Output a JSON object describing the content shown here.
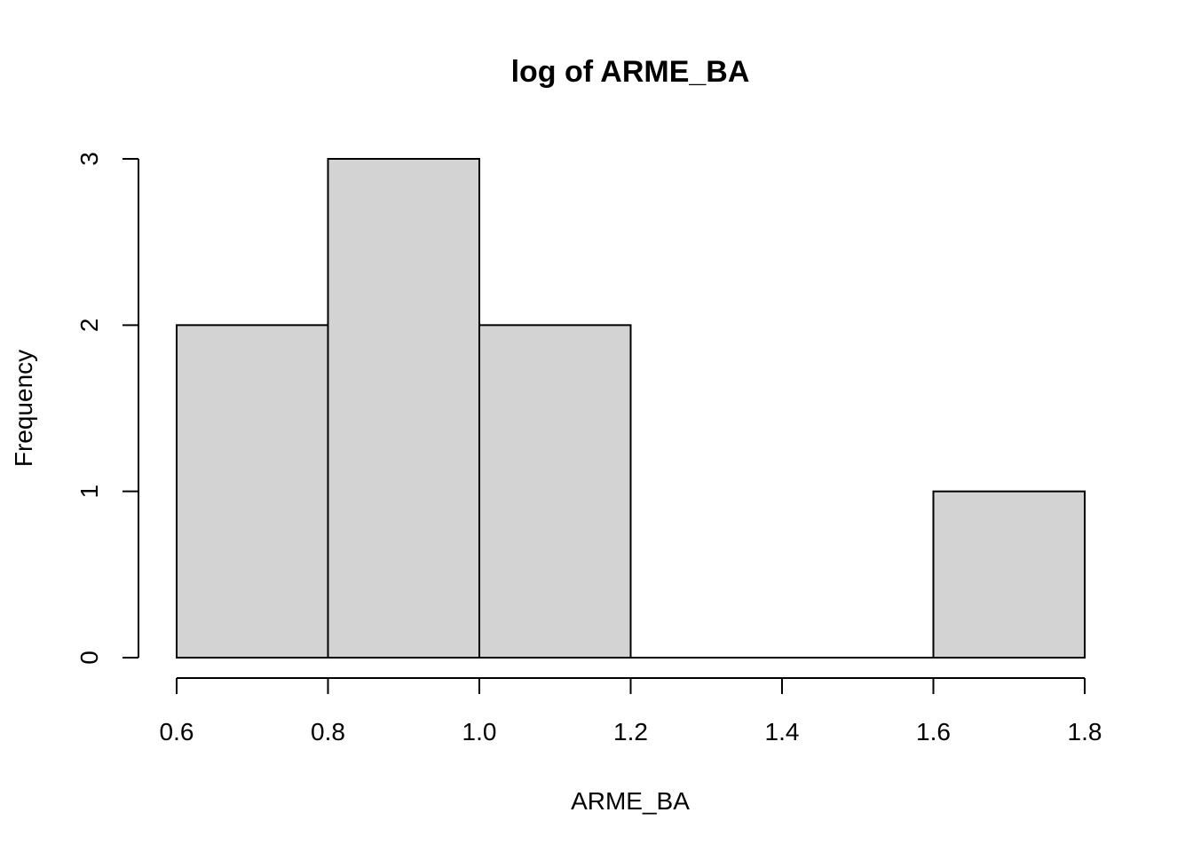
{
  "chart_data": {
    "type": "bar",
    "subtype": "histogram",
    "title": "log of ARME_BA",
    "xlabel": "ARME_BA",
    "ylabel": "Frequency",
    "bins": [
      {
        "start": 0.6,
        "end": 0.8,
        "count": 2
      },
      {
        "start": 0.8,
        "end": 1.0,
        "count": 3
      },
      {
        "start": 1.0,
        "end": 1.2,
        "count": 2
      },
      {
        "start": 1.2,
        "end": 1.4,
        "count": 0
      },
      {
        "start": 1.4,
        "end": 1.6,
        "count": 0
      },
      {
        "start": 1.6,
        "end": 1.8,
        "count": 1
      }
    ],
    "xlim": [
      0.6,
      1.8
    ],
    "ylim": [
      0,
      3
    ],
    "x_ticks": [
      "0.6",
      "0.8",
      "1.0",
      "1.2",
      "1.4",
      "1.6",
      "1.8"
    ],
    "y_ticks": [
      "0",
      "1",
      "2",
      "3"
    ],
    "bar_fill": "#d3d3d3",
    "bar_stroke": "#000000",
    "grid": false,
    "legend": "none"
  }
}
